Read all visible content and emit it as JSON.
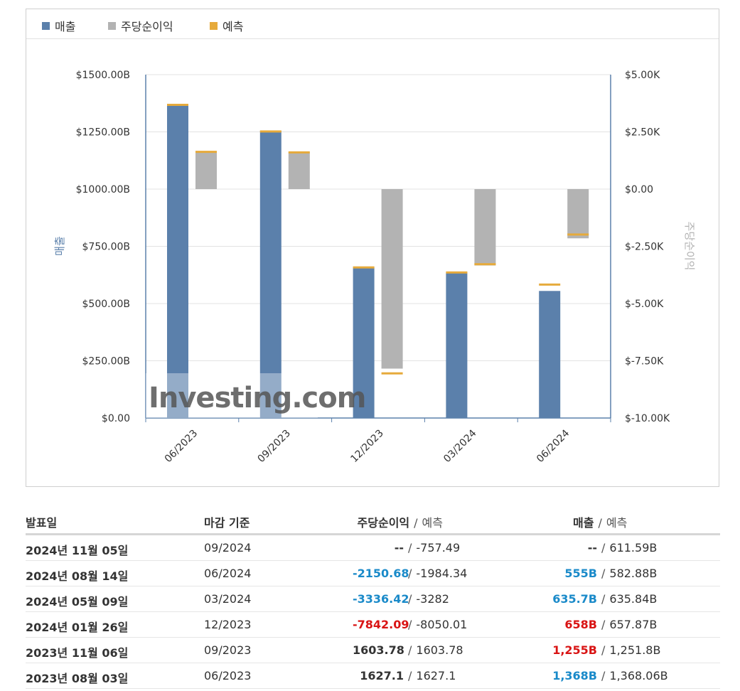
{
  "legend": [
    {
      "label": "매출",
      "color": "#5b80ab"
    },
    {
      "label": "주당순이익",
      "color": "#b3b3b3"
    },
    {
      "label": "예측",
      "color": "#e6aa3b"
    }
  ],
  "chart_data": {
    "type": "bar",
    "categories": [
      "06/2023",
      "09/2023",
      "12/2023",
      "03/2024",
      "06/2024"
    ],
    "series": [
      {
        "name": "매출",
        "axis": "left",
        "values": [
          1368,
          1255,
          658,
          635.7,
          555
        ],
        "color": "#5b80ab"
      },
      {
        "name": "주당순이익",
        "axis": "right",
        "values": [
          1627.1,
          1603.78,
          -7842.09,
          -3336.42,
          -2150.68
        ],
        "color": "#b3b3b3"
      },
      {
        "name": "예측 (매출)",
        "axis": "left",
        "values": [
          1368.06,
          1251.8,
          657.87,
          635.84,
          582.88
        ],
        "color": "#e6aa3b"
      },
      {
        "name": "예측 (주당순이익)",
        "axis": "right",
        "values": [
          1627.1,
          1603.78,
          -8050.01,
          -3282,
          -1984.34
        ],
        "color": "#e6aa3b"
      }
    ],
    "left_axis": {
      "label": "매출",
      "ylim": [
        0,
        1500
      ],
      "ticks": [
        "$1500.00B",
        "$1250.00B",
        "$1000.00B",
        "$750.00B",
        "$500.00B",
        "$250.00B",
        "$0.00"
      ]
    },
    "right_axis": {
      "label": "주당순이익",
      "ylim": [
        -10000,
        5000
      ],
      "ticks": [
        "$5.00K",
        "$2.50K",
        "$0.00",
        "$-2.50K",
        "$-5.00K",
        "$-7.50K",
        "$-10.00K"
      ]
    },
    "watermark": "Investing.com"
  },
  "table": {
    "headers": {
      "date": "발표일",
      "period": "마감 기준",
      "eps": "주당순이익",
      "eps_sep": "/",
      "eps_forecast": "예측",
      "revenue": "매출",
      "rev_sep": "/",
      "rev_forecast": "예측"
    },
    "sep": "/",
    "rows": [
      {
        "date": "2024년 11월 05일",
        "period": "09/2024",
        "eps": "--",
        "eps_color": "black",
        "eps_forecast": "-757.49",
        "revenue": "--",
        "rev_color": "black",
        "rev_forecast": "611.59B"
      },
      {
        "date": "2024년 08월 14일",
        "period": "06/2024",
        "eps": "-2150.68",
        "eps_color": "blue",
        "eps_forecast": "-1984.34",
        "revenue": "555B",
        "rev_color": "blue",
        "rev_forecast": "582.88B"
      },
      {
        "date": "2024년 05월 09일",
        "period": "03/2024",
        "eps": "-3336.42",
        "eps_color": "blue",
        "eps_forecast": "-3282",
        "revenue": "635.7B",
        "rev_color": "blue",
        "rev_forecast": "635.84B"
      },
      {
        "date": "2024년 01월 26일",
        "period": "12/2023",
        "eps": "-7842.09",
        "eps_color": "red",
        "eps_forecast": "-8050.01",
        "revenue": "658B",
        "rev_color": "red",
        "rev_forecast": "657.87B"
      },
      {
        "date": "2023년 11월 06일",
        "period": "09/2023",
        "eps": "1603.78",
        "eps_color": "black",
        "eps_forecast": "1603.78",
        "revenue": "1,255B",
        "rev_color": "red",
        "rev_forecast": "1,251.8B"
      },
      {
        "date": "2023년 08월 03일",
        "period": "06/2023",
        "eps": "1627.1",
        "eps_color": "black",
        "eps_forecast": "1627.1",
        "revenue": "1,368B",
        "rev_color": "blue",
        "rev_forecast": "1,368.06B"
      }
    ]
  }
}
